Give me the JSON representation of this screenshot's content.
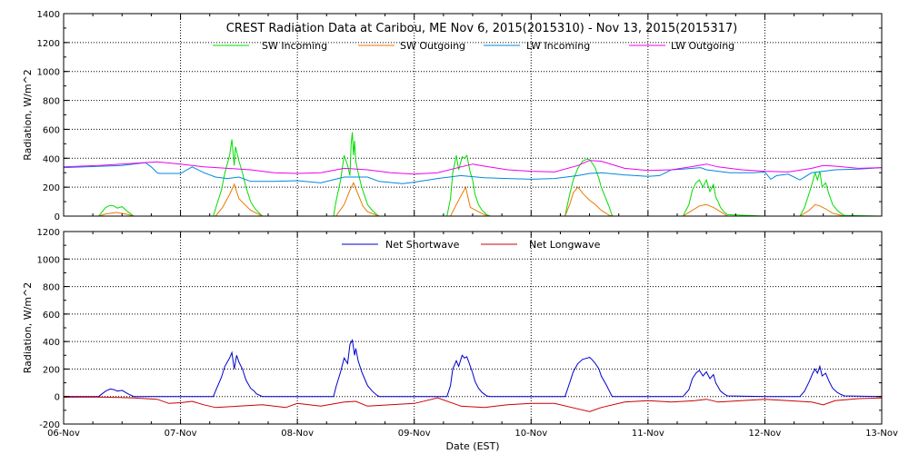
{
  "chart_data": [
    {
      "type": "line",
      "title": "CREST Radiation Data at Caribou, ME   Nov  6, 2015(2015310) - Nov 13, 2015(2015317)",
      "ylabel": "Radiation, W/m^2",
      "xlabel": "",
      "ylim": [
        0,
        1400
      ],
      "yticks": [
        0,
        200,
        400,
        600,
        800,
        1000,
        1200,
        1400
      ],
      "xlim": [
        0,
        7
      ],
      "x_ticks": [
        0,
        1,
        2,
        3,
        4,
        5,
        6,
        7
      ],
      "x_tick_labels": [
        "06-Nov",
        "07-Nov",
        "08-Nov",
        "09-Nov",
        "10-Nov",
        "11-Nov",
        "12-Nov",
        "13-Nov"
      ],
      "grid": true,
      "legend_position": "top-center",
      "series": [
        {
          "name": "SW Incoming",
          "color": "#00dd00",
          "x": [
            0,
            0.3,
            0.33,
            0.36,
            0.4,
            0.43,
            0.46,
            0.5,
            0.55,
            0.6,
            1.0,
            1.28,
            1.3,
            1.35,
            1.38,
            1.42,
            1.44,
            1.46,
            1.47,
            1.5,
            1.53,
            1.56,
            1.6,
            1.63,
            1.65,
            1.7,
            2.0,
            2.31,
            2.33,
            2.37,
            2.4,
            2.43,
            2.45,
            2.46,
            2.47,
            2.48,
            2.49,
            2.5,
            2.52,
            2.55,
            2.58,
            2.6,
            2.64,
            2.68,
            2.7,
            3.0,
            3.28,
            3.31,
            3.33,
            3.36,
            3.38,
            3.41,
            3.43,
            3.45,
            3.48,
            3.5,
            3.52,
            3.55,
            3.58,
            3.62,
            3.65,
            4.0,
            4.29,
            4.33,
            4.36,
            4.4,
            4.44,
            4.48,
            4.5,
            4.52,
            4.55,
            4.58,
            4.6,
            4.64,
            4.67,
            4.69,
            4.7,
            5.0,
            5.3,
            5.35,
            5.38,
            5.41,
            5.44,
            5.47,
            5.5,
            5.53,
            5.56,
            5.58,
            5.6,
            5.62,
            5.65,
            5.68,
            6.0,
            6.28,
            6.3,
            6.34,
            6.38,
            6.41,
            6.43,
            6.45,
            6.47,
            6.49,
            6.52,
            6.55,
            6.58,
            6.62,
            6.65,
            6.68,
            7.0
          ],
          "y": [
            0,
            0,
            30,
            60,
            75,
            70,
            55,
            65,
            30,
            0,
            0,
            0,
            50,
            180,
            300,
            420,
            530,
            350,
            480,
            380,
            300,
            200,
            100,
            60,
            40,
            0,
            0,
            0,
            100,
            250,
            420,
            350,
            280,
            500,
            580,
            420,
            520,
            380,
            300,
            200,
            130,
            80,
            40,
            10,
            0,
            0,
            0,
            120,
            300,
            420,
            320,
            410,
            400,
            420,
            300,
            250,
            150,
            80,
            40,
            10,
            0,
            0,
            0,
            150,
            250,
            330,
            380,
            395,
            390,
            370,
            330,
            260,
            200,
            120,
            60,
            10,
            0,
            0,
            0,
            80,
            180,
            230,
            250,
            200,
            250,
            170,
            220,
            130,
            100,
            60,
            30,
            10,
            0,
            0,
            0,
            60,
            160,
            240,
            300,
            250,
            310,
            200,
            230,
            150,
            80,
            40,
            20,
            5,
            0
          ]
        },
        {
          "name": "SW Outgoing",
          "color": "#ee7700",
          "x": [
            0,
            0.3,
            0.36,
            0.45,
            0.55,
            0.6,
            1.0,
            1.3,
            1.36,
            1.42,
            1.46,
            1.5,
            1.55,
            1.6,
            1.7,
            2.0,
            2.33,
            2.4,
            2.45,
            2.48,
            2.52,
            2.56,
            2.6,
            2.7,
            3.0,
            3.31,
            3.36,
            3.4,
            3.44,
            3.48,
            3.55,
            3.6,
            3.65,
            4.0,
            4.29,
            4.33,
            4.36,
            4.4,
            4.45,
            4.5,
            4.55,
            4.6,
            4.67,
            4.7,
            5.0,
            5.3,
            5.38,
            5.44,
            5.5,
            5.56,
            5.62,
            5.68,
            6.0,
            6.3,
            6.38,
            6.43,
            6.47,
            6.52,
            6.58,
            6.68,
            7.0
          ],
          "y": [
            0,
            0,
            15,
            25,
            12,
            0,
            0,
            0,
            60,
            150,
            220,
            120,
            80,
            40,
            0,
            0,
            0,
            80,
            180,
            230,
            150,
            70,
            30,
            0,
            0,
            0,
            80,
            140,
            200,
            60,
            30,
            10,
            0,
            0,
            0,
            80,
            160,
            200,
            150,
            110,
            80,
            40,
            5,
            0,
            0,
            0,
            40,
            70,
            80,
            60,
            30,
            0,
            0,
            0,
            40,
            80,
            70,
            50,
            20,
            0,
            0
          ]
        },
        {
          "name": "LW Incoming",
          "color": "#0088dd",
          "x": [
            0,
            0.5,
            0.7,
            0.75,
            0.8,
            0.82,
            1.0,
            1.1,
            1.2,
            1.3,
            1.4,
            1.5,
            1.6,
            1.8,
            2.0,
            2.2,
            2.4,
            2.6,
            2.7,
            2.9,
            3.0,
            3.2,
            3.4,
            3.6,
            3.8,
            4.0,
            4.2,
            4.4,
            4.5,
            4.6,
            4.8,
            5.0,
            5.1,
            5.2,
            5.3,
            5.45,
            5.5,
            5.6,
            5.7,
            5.9,
            6.0,
            6.05,
            6.1,
            6.2,
            6.3,
            6.4,
            6.5,
            6.6,
            6.8,
            7.0
          ],
          "y": [
            335,
            350,
            370,
            340,
            300,
            295,
            295,
            340,
            300,
            270,
            260,
            270,
            240,
            240,
            245,
            230,
            270,
            270,
            240,
            225,
            235,
            260,
            280,
            265,
            260,
            255,
            260,
            280,
            295,
            300,
            285,
            275,
            280,
            320,
            325,
            335,
            320,
            310,
            300,
            300,
            305,
            255,
            280,
            290,
            250,
            300,
            310,
            320,
            325,
            335
          ]
        },
        {
          "name": "LW Outgoing",
          "color": "#ee00ee",
          "x": [
            0,
            0.3,
            0.6,
            0.8,
            1.0,
            1.2,
            1.4,
            1.6,
            1.8,
            2.0,
            2.2,
            2.4,
            2.6,
            2.8,
            3.0,
            3.2,
            3.4,
            3.5,
            3.6,
            3.8,
            4.0,
            4.2,
            4.4,
            4.5,
            4.6,
            4.7,
            4.8,
            5.0,
            5.2,
            5.4,
            5.5,
            5.6,
            5.8,
            6.0,
            6.2,
            6.4,
            6.5,
            6.6,
            6.8,
            7.0
          ],
          "y": [
            340,
            350,
            365,
            375,
            360,
            340,
            330,
            320,
            300,
            295,
            300,
            330,
            320,
            300,
            290,
            300,
            340,
            360,
            345,
            320,
            310,
            305,
            350,
            385,
            380,
            355,
            330,
            315,
            320,
            345,
            360,
            340,
            320,
            310,
            305,
            330,
            350,
            345,
            330,
            335
          ]
        }
      ]
    },
    {
      "type": "line",
      "title": "",
      "ylabel": "Radiation, W/m^2",
      "xlabel": "Date (EST)",
      "ylim": [
        -200,
        1200
      ],
      "yticks": [
        -200,
        0,
        200,
        400,
        600,
        800,
        1000,
        1200
      ],
      "xlim": [
        0,
        7
      ],
      "x_ticks": [
        0,
        1,
        2,
        3,
        4,
        5,
        6,
        7
      ],
      "x_tick_labels": [
        "06-Nov",
        "07-Nov",
        "08-Nov",
        "09-Nov",
        "10-Nov",
        "11-Nov",
        "12-Nov",
        "13-Nov"
      ],
      "grid": true,
      "legend_position": "top-center",
      "series": [
        {
          "name": "Net Shortwave",
          "color": "#0000cc",
          "x": [
            0,
            0.3,
            0.33,
            0.36,
            0.4,
            0.43,
            0.46,
            0.5,
            0.55,
            0.6,
            1.0,
            1.28,
            1.3,
            1.35,
            1.38,
            1.42,
            1.44,
            1.46,
            1.48,
            1.5,
            1.53,
            1.56,
            1.6,
            1.63,
            1.65,
            1.7,
            2.0,
            2.31,
            2.33,
            2.37,
            2.4,
            2.43,
            2.45,
            2.47,
            2.49,
            2.5,
            2.52,
            2.55,
            2.58,
            2.6,
            2.64,
            2.68,
            2.7,
            3.0,
            3.28,
            3.31,
            3.33,
            3.36,
            3.38,
            3.41,
            3.43,
            3.45,
            3.48,
            3.5,
            3.52,
            3.55,
            3.58,
            3.62,
            3.65,
            4.0,
            4.29,
            4.33,
            4.36,
            4.4,
            4.44,
            4.48,
            4.5,
            4.52,
            4.55,
            4.58,
            4.6,
            4.64,
            4.67,
            4.69,
            4.7,
            5.0,
            5.3,
            5.35,
            5.38,
            5.41,
            5.44,
            5.47,
            5.5,
            5.53,
            5.56,
            5.58,
            5.6,
            5.62,
            5.65,
            5.68,
            6.0,
            6.28,
            6.3,
            6.34,
            6.38,
            6.41,
            6.43,
            6.45,
            6.47,
            6.49,
            6.52,
            6.55,
            6.58,
            6.62,
            6.65,
            6.68,
            7.0
          ],
          "y": [
            0,
            0,
            20,
            40,
            55,
            50,
            40,
            45,
            20,
            0,
            0,
            0,
            40,
            140,
            220,
            280,
            320,
            200,
            300,
            250,
            200,
            120,
            60,
            40,
            20,
            0,
            0,
            0,
            70,
            180,
            280,
            240,
            380,
            410,
            300,
            350,
            260,
            180,
            120,
            80,
            40,
            10,
            0,
            0,
            0,
            80,
            200,
            260,
            220,
            300,
            280,
            290,
            220,
            170,
            110,
            60,
            30,
            5,
            0,
            0,
            0,
            100,
            180,
            240,
            270,
            280,
            285,
            270,
            240,
            200,
            150,
            90,
            40,
            5,
            0,
            0,
            0,
            50,
            130,
            170,
            190,
            150,
            180,
            130,
            160,
            100,
            70,
            40,
            20,
            5,
            0,
            0,
            0,
            40,
            110,
            170,
            200,
            170,
            220,
            150,
            170,
            110,
            60,
            30,
            15,
            5,
            0
          ]
        },
        {
          "name": "Net Longwave",
          "color": "#cc0000",
          "x": [
            0,
            0.3,
            0.6,
            0.8,
            0.9,
            1.0,
            1.1,
            1.2,
            1.3,
            1.5,
            1.7,
            1.9,
            2.0,
            2.2,
            2.4,
            2.5,
            2.6,
            2.8,
            3.0,
            3.1,
            3.2,
            3.4,
            3.6,
            3.8,
            4.0,
            4.2,
            4.4,
            4.5,
            4.6,
            4.8,
            5.0,
            5.2,
            5.4,
            5.5,
            5.6,
            5.8,
            6.0,
            6.2,
            6.4,
            6.5,
            6.6,
            6.8,
            7.0
          ],
          "y": [
            -5,
            -3,
            -10,
            -20,
            -50,
            -45,
            -35,
            -60,
            -80,
            -70,
            -60,
            -80,
            -50,
            -70,
            -40,
            -35,
            -70,
            -60,
            -50,
            -30,
            -10,
            -70,
            -80,
            -60,
            -50,
            -50,
            -90,
            -110,
            -80,
            -40,
            -30,
            -40,
            -30,
            -20,
            -40,
            -30,
            -20,
            -30,
            -40,
            -60,
            -30,
            -15,
            -10
          ]
        }
      ]
    }
  ]
}
